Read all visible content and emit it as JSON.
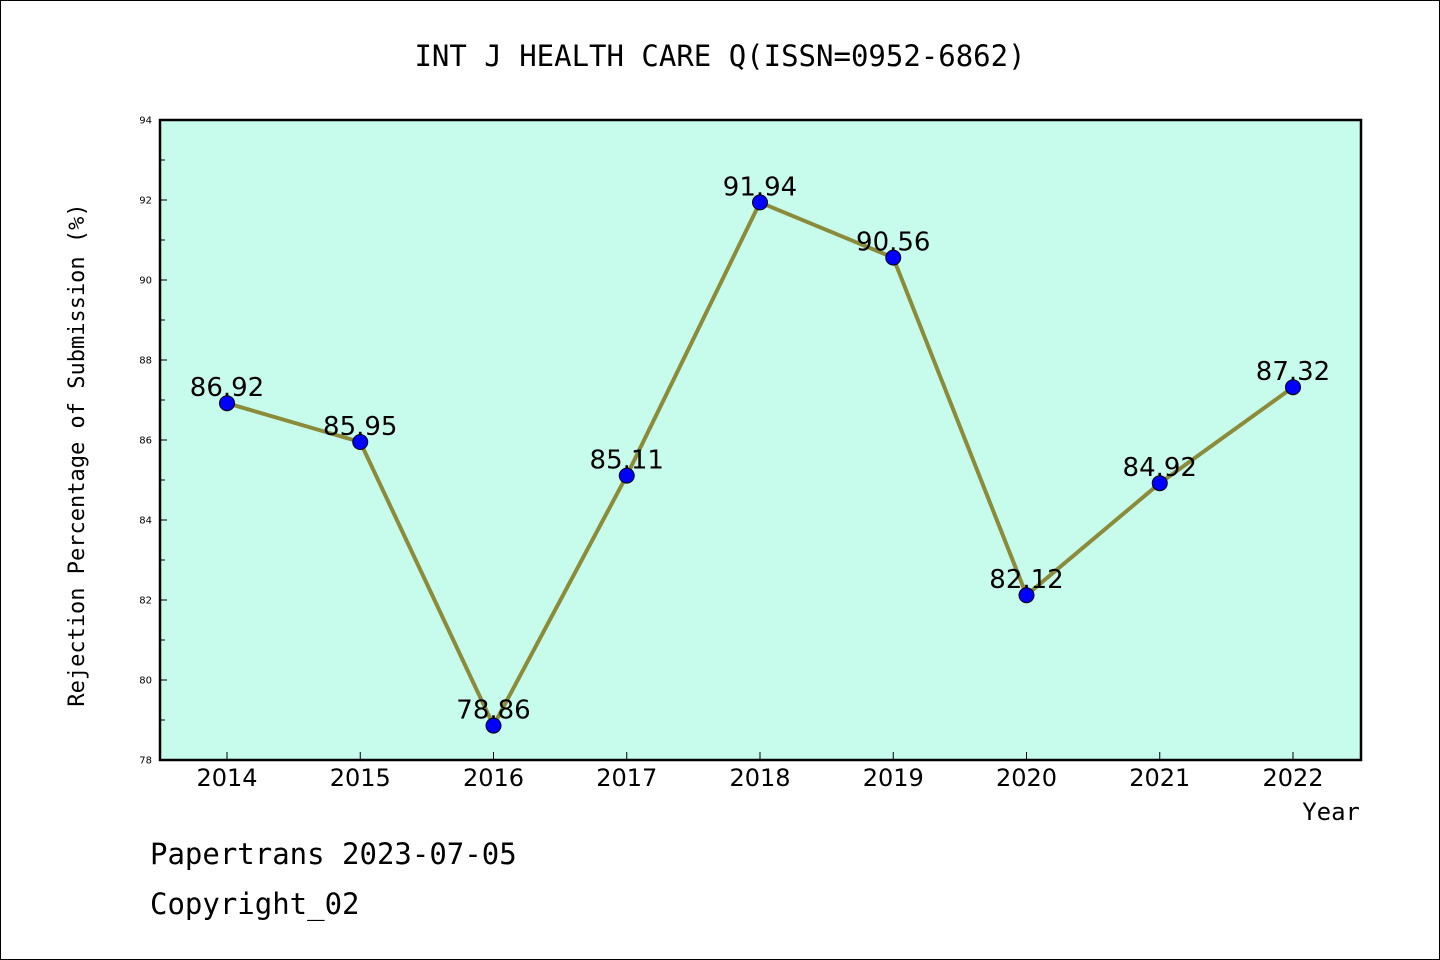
{
  "footer": {
    "line1": "Papertrans 2023-07-05",
    "line2": "Copyright_02"
  },
  "chart_data": {
    "type": "line",
    "title": "INT J HEALTH CARE Q(ISSN=0952-6862)",
    "xlabel": "Year",
    "ylabel": "Rejection Percentage of Submission (%)",
    "categories": [
      "2014",
      "2015",
      "2016",
      "2017",
      "2018",
      "2019",
      "2020",
      "2021",
      "2022"
    ],
    "series": [
      {
        "values": [
          86.92,
          85.95,
          78.86,
          85.11,
          91.94,
          90.56,
          82.12,
          84.92,
          87.32
        ]
      }
    ],
    "data_labels": [
      "86.92",
      "85.95",
      "78.86",
      "85.11",
      "91.94",
      "90.56",
      "82.12",
      "84.92",
      "87.32"
    ],
    "ylim": [
      78,
      94
    ],
    "yticks": [
      "78",
      "80",
      "82",
      "84",
      "86",
      "88",
      "90",
      "92",
      "94"
    ],
    "grid": false,
    "colors": {
      "plot_background": "#c7fcec",
      "line": "#8b8b3a",
      "marker": "#0000ff"
    }
  }
}
